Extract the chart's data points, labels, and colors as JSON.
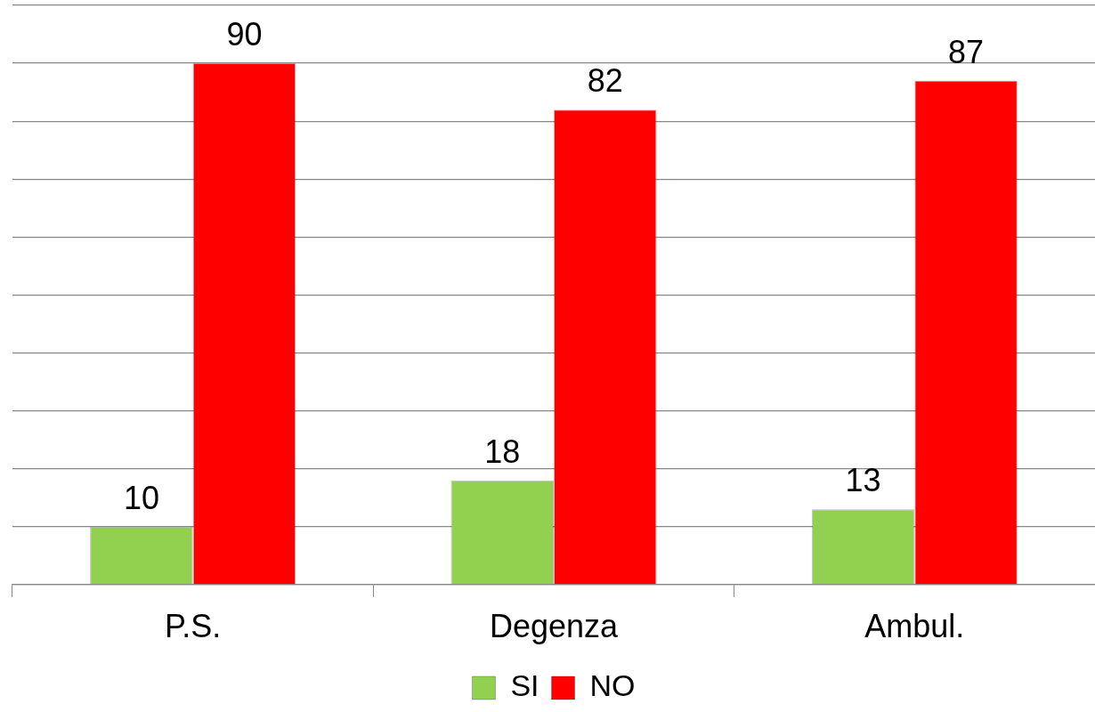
{
  "chart_data": {
    "type": "bar",
    "categories": [
      "P.S.",
      "Degenza",
      "Ambul."
    ],
    "series": [
      {
        "name": "SI",
        "color": "#92d050",
        "values": [
          10,
          18,
          13
        ]
      },
      {
        "name": "NO",
        "color": "#ff0000",
        "values": [
          90,
          82,
          87
        ]
      }
    ],
    "ylim": [
      0,
      100
    ],
    "yticks": [
      {
        "value": 0,
        "label": null
      },
      {
        "value": 10,
        "label": null
      },
      {
        "value": 20,
        "label": null
      },
      {
        "value": 30,
        "label": null
      },
      {
        "value": 40,
        "label": null
      },
      {
        "value": 50,
        "label": null
      },
      {
        "value": 60,
        "label": null
      },
      {
        "value": 70,
        "label": null
      },
      {
        "value": 80,
        "label": null
      },
      {
        "value": 90,
        "label": null
      },
      {
        "value": 100,
        "label": null
      }
    ],
    "grid": "y",
    "legend": "bottom",
    "tick_labels": "x",
    "data_labels": true
  }
}
